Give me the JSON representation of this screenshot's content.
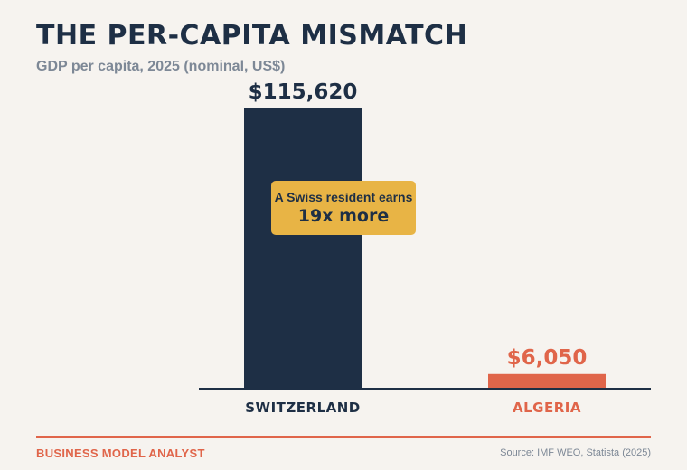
{
  "header": {
    "title": "THE PER-CAPITA MISMATCH",
    "subtitle": "GDP per capita, 2025 (nominal, US$)"
  },
  "callout": {
    "line1": "A Swiss resident earns",
    "line2": "19x more"
  },
  "footer": {
    "brand": "BUSINESS MODEL ANALYST",
    "source": "Source: IMF WEO, Statista (2025)"
  },
  "colors": {
    "background": "#f6f3ef",
    "navy": "#1e2f45",
    "coral": "#e0654a",
    "gold": "#e8b445",
    "muted": "#7d8896"
  },
  "chart_data": {
    "type": "bar",
    "title": "THE PER-CAPITA MISMATCH",
    "subtitle": "GDP per capita, 2025 (nominal, US$)",
    "categories": [
      "SWITZERLAND",
      "ALGERIA"
    ],
    "values": [
      115620,
      6050
    ],
    "value_labels": [
      "$115,620",
      "$6,050"
    ],
    "bar_colors": [
      "#1e2f45",
      "#e0654a"
    ],
    "ylim": [
      0,
      115620
    ],
    "grid": false,
    "legend": "none",
    "xlabel": "",
    "ylabel": ""
  }
}
